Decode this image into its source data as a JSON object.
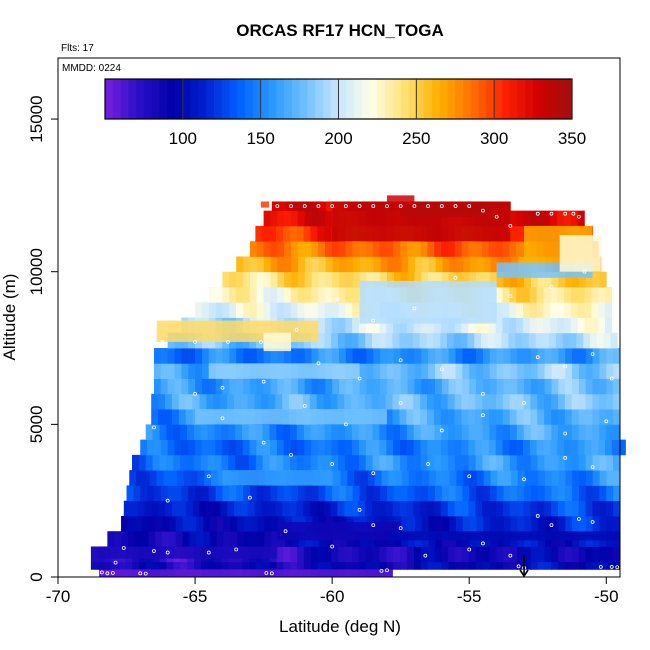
{
  "chart_data": {
    "type": "heatmap",
    "title": "ORCAS RF17 HCN_TOGA",
    "flights_note": "Flts: 17",
    "date_note": "MMDD: 0224",
    "xlabel": "Latitude (deg N)",
    "ylabel": "Altitude (m)",
    "xlim": [
      -70,
      -49.5
    ],
    "ylim": [
      0,
      17000
    ],
    "x_ticks": [
      -70,
      -65,
      -60,
      -55,
      -50
    ],
    "x_tick_labels": [
      "-70",
      "-65",
      "-60",
      "-55",
      "-50"
    ],
    "y_ticks": [
      0,
      5000,
      10000,
      15000
    ],
    "y_tick_labels": [
      "0",
      "5000",
      "10000",
      "15000"
    ],
    "colorbar": {
      "range": [
        50,
        350
      ],
      "ticks": [
        100,
        150,
        200,
        250,
        300,
        350
      ],
      "tick_labels": [
        "100",
        "150",
        "200",
        "250",
        "300",
        "350"
      ],
      "colors": [
        "#7a1fe0",
        "#2a10c8",
        "#0000a8",
        "#0020d0",
        "#0060ff",
        "#2898ff",
        "#70c0ff",
        "#c8e6ff",
        "#ffffe8",
        "#ffe070",
        "#ffb000",
        "#ff7000",
        "#ff2000",
        "#d00000",
        "#a01010"
      ]
    },
    "bands": [
      {
        "alt_lo": 0,
        "alt_hi": 250,
        "lat_start": -68.5,
        "lat_end": -57.8,
        "value": 65
      },
      {
        "alt_lo": 250,
        "alt_hi": 500,
        "lat_start": -68.8,
        "lat_end": -49.5,
        "value": 90
      },
      {
        "alt_lo": 500,
        "alt_hi": 1000,
        "lat_start": -68.8,
        "lat_end": -49.5,
        "value": 80
      },
      {
        "alt_lo": 1000,
        "alt_hi": 1500,
        "lat_start": -68.2,
        "lat_end": -49.5,
        "value": 95
      },
      {
        "alt_lo": 1500,
        "alt_hi": 2000,
        "lat_start": -67.7,
        "lat_end": -49.5,
        "value": 105
      },
      {
        "alt_lo": 2000,
        "alt_hi": 2500,
        "lat_start": -67.6,
        "lat_end": -49.5,
        "value": 115
      },
      {
        "alt_lo": 2500,
        "alt_hi": 3000,
        "lat_start": -67.5,
        "lat_end": -49.5,
        "value": 130
      },
      {
        "alt_lo": 3000,
        "alt_hi": 3500,
        "lat_start": -67.4,
        "lat_end": -49.5,
        "value": 140
      },
      {
        "alt_lo": 3500,
        "alt_hi": 4000,
        "lat_start": -67.3,
        "lat_end": -49.5,
        "value": 150
      },
      {
        "alt_lo": 4000,
        "alt_hi": 4500,
        "lat_start": -67.0,
        "lat_end": -49.3,
        "value": 145
      },
      {
        "alt_lo": 4500,
        "alt_hi": 5000,
        "lat_start": -66.8,
        "lat_end": -49.5,
        "value": 155
      },
      {
        "alt_lo": 5000,
        "alt_hi": 5500,
        "lat_start": -66.6,
        "lat_end": -49.5,
        "value": 160
      },
      {
        "alt_lo": 5500,
        "alt_hi": 6000,
        "lat_start": -66.6,
        "lat_end": -49.5,
        "value": 170
      },
      {
        "alt_lo": 6000,
        "alt_hi": 6500,
        "lat_start": -66.5,
        "lat_end": -49.5,
        "value": 165
      },
      {
        "alt_lo": 6500,
        "alt_hi": 7000,
        "lat_start": -66.5,
        "lat_end": -49.5,
        "value": 175
      },
      {
        "alt_lo": 7000,
        "alt_hi": 7500,
        "lat_start": -66.5,
        "lat_end": -49.5,
        "value": 150
      },
      {
        "alt_lo": 7500,
        "alt_hi": 8000,
        "lat_start": -66.0,
        "lat_end": -49.6,
        "value": 185
      },
      {
        "alt_lo": 8000,
        "alt_hi": 8500,
        "lat_start": -65.5,
        "lat_end": -49.8,
        "value": 200
      },
      {
        "alt_lo": 8500,
        "alt_hi": 9000,
        "lat_start": -65.0,
        "lat_end": -49.8,
        "value": 215
      },
      {
        "alt_lo": 9000,
        "alt_hi": 9500,
        "lat_start": -64.5,
        "lat_end": -49.8,
        "value": 230
      },
      {
        "alt_lo": 9500,
        "alt_hi": 10000,
        "lat_start": -64.0,
        "lat_end": -50.0,
        "value": 245
      },
      {
        "alt_lo": 10000,
        "alt_hi": 10500,
        "lat_start": -63.5,
        "lat_end": -50.2,
        "value": 265
      },
      {
        "alt_lo": 10500,
        "alt_hi": 11000,
        "lat_start": -63.0,
        "lat_end": -50.3,
        "value": 285
      },
      {
        "alt_lo": 11000,
        "alt_hi": 11500,
        "lat_start": -62.8,
        "lat_end": -50.5,
        "value": 305
      },
      {
        "alt_lo": 11500,
        "alt_hi": 12000,
        "lat_start": -62.5,
        "lat_end": -50.8,
        "value": 320
      },
      {
        "alt_lo": 12000,
        "alt_hi": 12300,
        "lat_start": -62.2,
        "lat_end": -53.5,
        "value": 330
      }
    ],
    "patches": [
      {
        "lat_lo": -66.4,
        "lat_hi": -60.5,
        "alt_lo": 7700,
        "alt_hi": 8400,
        "value": 245
      },
      {
        "lat_lo": -59.0,
        "lat_hi": -54.0,
        "alt_lo": 8300,
        "alt_hi": 9700,
        "value": 195
      },
      {
        "lat_lo": -54.0,
        "lat_hi": -50.5,
        "alt_lo": 9800,
        "alt_hi": 10300,
        "value": 180
      },
      {
        "lat_lo": -53.0,
        "lat_hi": -50.5,
        "alt_lo": 10300,
        "alt_hi": 11500,
        "value": 265
      },
      {
        "lat_lo": -51.7,
        "lat_hi": -50.2,
        "alt_lo": 10000,
        "alt_hi": 11200,
        "value": 225
      },
      {
        "lat_lo": -60.0,
        "lat_hi": -53.5,
        "alt_lo": 11000,
        "alt_hi": 12300,
        "value": 335
      },
      {
        "lat_lo": -57.5,
        "lat_hi": -54.5,
        "alt_lo": 11800,
        "alt_hi": 12300,
        "value": 340
      },
      {
        "lat_lo": -62.5,
        "lat_hi": -61.5,
        "alt_lo": 7400,
        "alt_hi": 8000,
        "value": 225
      },
      {
        "lat_lo": -64.5,
        "lat_hi": -59.0,
        "alt_lo": 6500,
        "alt_hi": 7000,
        "value": 185
      },
      {
        "lat_lo": -65.0,
        "lat_hi": -58.0,
        "alt_lo": 5000,
        "alt_hi": 5500,
        "value": 180
      },
      {
        "lat_lo": -64.0,
        "lat_hi": -60.0,
        "alt_lo": 3000,
        "alt_hi": 3500,
        "value": 160
      },
      {
        "lat_lo": -68.5,
        "lat_hi": -62.0,
        "alt_lo": 600,
        "alt_hi": 1000,
        "value": 80
      },
      {
        "lat_lo": -62.0,
        "lat_hi": -57.5,
        "alt_lo": 1200,
        "alt_hi": 1800,
        "value": 85
      },
      {
        "lat_lo": -58.0,
        "lat_hi": -49.5,
        "alt_lo": 1200,
        "alt_hi": 1500,
        "value": 100
      },
      {
        "lat_lo": -68.0,
        "lat_hi": -57.8,
        "alt_lo": 0,
        "alt_hi": 250,
        "value": 60
      },
      {
        "lat_lo": -62.6,
        "lat_hi": -62.3,
        "alt_lo": 12100,
        "alt_hi": 12300,
        "value": 300
      },
      {
        "lat_lo": -58.0,
        "lat_hi": -57.0,
        "alt_lo": 12200,
        "alt_hi": 12500,
        "value": 330
      }
    ],
    "sample_points": [
      [
        -68.4,
        150
      ],
      [
        -68.2,
        120
      ],
      [
        -68.0,
        130
      ],
      [
        -67.9,
        470
      ],
      [
        -67.6,
        950
      ],
      [
        -67.0,
        120
      ],
      [
        -66.8,
        110
      ],
      [
        -66.5,
        850
      ],
      [
        -66.0,
        800
      ],
      [
        -64.5,
        800
      ],
      [
        -63.5,
        900
      ],
      [
        -62.4,
        130
      ],
      [
        -62.2,
        120
      ],
      [
        -61.7,
        1500
      ],
      [
        -60.0,
        1000
      ],
      [
        -59.0,
        2200
      ],
      [
        -58.5,
        1700
      ],
      [
        -58.2,
        200
      ],
      [
        -58.0,
        220
      ],
      [
        -57.5,
        1600
      ],
      [
        -56.6,
        700
      ],
      [
        -55.0,
        900
      ],
      [
        -54.5,
        1100
      ],
      [
        -53.5,
        700
      ],
      [
        -53.2,
        350
      ],
      [
        -53.0,
        300
      ],
      [
        -52.5,
        2000
      ],
      [
        -52.0,
        1700
      ],
      [
        -51.0,
        1900
      ],
      [
        -50.5,
        1800
      ],
      [
        -50.2,
        330
      ],
      [
        -49.8,
        330
      ],
      [
        -49.6,
        320
      ],
      [
        -67.8,
        2300
      ],
      [
        -66.0,
        2500
      ],
      [
        -64.5,
        3300
      ],
      [
        -63.0,
        2600
      ],
      [
        -61.5,
        4000
      ],
      [
        -60.0,
        3700
      ],
      [
        -58.5,
        3400
      ],
      [
        -56.5,
        3700
      ],
      [
        -55.0,
        3300
      ],
      [
        -53.0,
        3200
      ],
      [
        -51.5,
        3900
      ],
      [
        -50.5,
        3600
      ],
      [
        -67.1,
        4400
      ],
      [
        -66.5,
        4900
      ],
      [
        -64.0,
        5200
      ],
      [
        -62.5,
        4400
      ],
      [
        -61.0,
        5600
      ],
      [
        -59.5,
        5000
      ],
      [
        -57.5,
        5700
      ],
      [
        -56.0,
        4800
      ],
      [
        -54.5,
        5300
      ],
      [
        -53.0,
        5700
      ],
      [
        -51.5,
        4700
      ],
      [
        -50.0,
        5100
      ],
      [
        -66.6,
        6600
      ],
      [
        -65.0,
        6000
      ],
      [
        -64.0,
        6200
      ],
      [
        -62.5,
        6400
      ],
      [
        -60.5,
        7000
      ],
      [
        -59.0,
        6500
      ],
      [
        -57.5,
        7100
      ],
      [
        -56.0,
        6800
      ],
      [
        -54.5,
        6000
      ],
      [
        -52.5,
        7200
      ],
      [
        -51.5,
        6900
      ],
      [
        -50.5,
        7300
      ],
      [
        -49.8,
        6500
      ],
      [
        -66.2,
        7700
      ],
      [
        -65.0,
        7700
      ],
      [
        -63.8,
        7700
      ],
      [
        -62.6,
        7700
      ],
      [
        -61.3,
        8100
      ],
      [
        -59.8,
        9100
      ],
      [
        -58.5,
        8400
      ],
      [
        -57.0,
        8800
      ],
      [
        -55.5,
        9800
      ],
      [
        -53.5,
        9200
      ],
      [
        -52.0,
        9500
      ],
      [
        -50.8,
        10000
      ],
      [
        -62.0,
        12150
      ],
      [
        -61.5,
        12150
      ],
      [
        -61.0,
        12150
      ],
      [
        -60.5,
        12150
      ],
      [
        -60.0,
        12150
      ],
      [
        -59.5,
        12150
      ],
      [
        -59.0,
        12150
      ],
      [
        -58.5,
        12150
      ],
      [
        -58.0,
        12150
      ],
      [
        -57.5,
        12150
      ],
      [
        -57.0,
        12150
      ],
      [
        -56.5,
        12150
      ],
      [
        -56.0,
        12150
      ],
      [
        -55.5,
        12150
      ],
      [
        -55.0,
        12150
      ],
      [
        -54.5,
        12000
      ],
      [
        -54.0,
        11800
      ],
      [
        -53.5,
        11500
      ],
      [
        -52.5,
        11900
      ],
      [
        -52.0,
        11900
      ],
      [
        -51.5,
        11900
      ],
      [
        -51.2,
        11900
      ],
      [
        -51.0,
        11800
      ]
    ],
    "marker": {
      "lat": -53.0,
      "alt_top": 700,
      "alt_bottom": 0
    }
  }
}
